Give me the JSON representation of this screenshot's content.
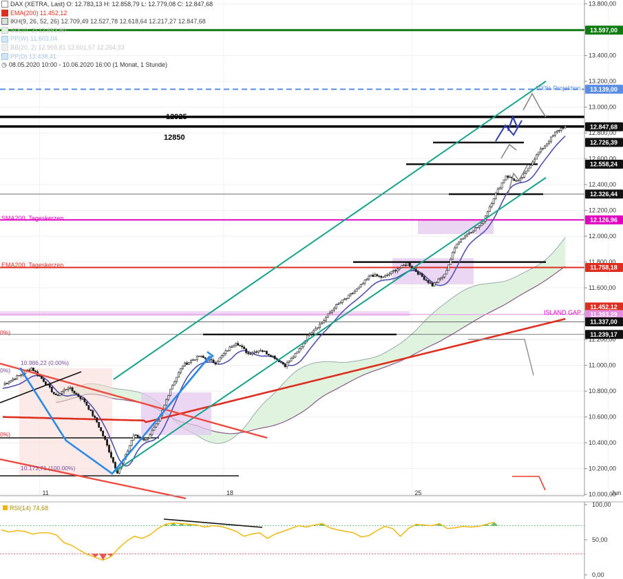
{
  "legend": {
    "title": "DAX (XETRA, Last)  O: 12.783,13  H: 12.858,79  L: 12.779,08  C: 12.847,68",
    "ema200": "EMA(200)  11.452,12",
    "ikh": "IKH(9, 26, 52, 26)  12.709,49  12.527,78  12.618,64  12.217,27  12.847,68",
    "sd": "SD(10, 2)  12.693,80",
    "ppw": "PP(W)  11.603,04",
    "bb": "BB(20, 2)  12.959,81  12.501,57  12.264,33",
    "ppd": "PP(D)  12.438,41",
    "range": "08.05.2020 10:00 - 10.06.2020 16:00   (1 Monat, 1 Stunde)"
  },
  "colors": {
    "candle": "#1a1a1a",
    "ema200": "#dd2e1f",
    "sma200": "#e000c0",
    "channel": "#15a38a",
    "tenkan": "#5050b0",
    "cloud": "#dff3df",
    "lead_b": "#8a5a8a",
    "rsi": "#f0b400",
    "rsi_green": "#4caf50",
    "rsi_red": "#e53935",
    "projection": "#5a8ee6",
    "arrow_blue": "#2a88e6",
    "resistance_green": "#0f7a0f"
  },
  "annotations": {
    "level_12925": "12925",
    "level_12850": "12850",
    "sma200": "SMA200, Tageskerzen",
    "ema200": "EMA200, Tageskerzen",
    "projection": "100% Projektion",
    "island_gap": "ISLAND GAP",
    "fib_high": "10.986,22 (0.00%)",
    "fib_low": "10.173,71 (100.00%)",
    "pct_top": "0%)",
    "pct_mid": "0%)",
    "pct_left": "0%)"
  },
  "chart_data": [
    {
      "type": "candlestick",
      "title": "DAX (XETRA, Last)",
      "x_ticks": [
        "11",
        "18",
        "25",
        "Jun"
      ],
      "y_ticks": [
        "10.000,00",
        "10.200,00",
        "10.400,00",
        "10.600,00",
        "10.800,00",
        "11.000,00",
        "11.200,00",
        "11.400,00",
        "11.600,00",
        "11.800,00",
        "12.000,00",
        "12.200,00",
        "12.400,00",
        "12.600,00",
        "12.800,00",
        "13.000,00",
        "13.200,00",
        "13.400,00",
        "13.600,00",
        "13.800,00"
      ],
      "ylim": [
        9990,
        13830
      ],
      "ohlc": {
        "open": 12783.13,
        "high": 12858.79,
        "low": 12779.08,
        "close": 12847.68
      },
      "price_path": [
        [
          0,
          10850
        ],
        [
          8,
          10920
        ],
        [
          14,
          10980
        ],
        [
          20,
          10880
        ],
        [
          26,
          10760
        ],
        [
          32,
          10830
        ],
        [
          40,
          10720
        ],
        [
          46,
          10560
        ],
        [
          50,
          10420
        ],
        [
          54,
          10250
        ],
        [
          56,
          10174
        ],
        [
          60,
          10300
        ],
        [
          64,
          10460
        ],
        [
          70,
          10420
        ],
        [
          76,
          10560
        ],
        [
          82,
          10820
        ],
        [
          88,
          11000
        ],
        [
          96,
          11070
        ],
        [
          104,
          11020
        ],
        [
          110,
          11120
        ],
        [
          114,
          11180
        ],
        [
          120,
          11090
        ],
        [
          126,
          11120
        ],
        [
          132,
          11070
        ],
        [
          138,
          11000
        ],
        [
          144,
          11100
        ],
        [
          150,
          11250
        ],
        [
          156,
          11330
        ],
        [
          162,
          11450
        ],
        [
          168,
          11520
        ],
        [
          174,
          11600
        ],
        [
          180,
          11700
        ],
        [
          186,
          11680
        ],
        [
          192,
          11740
        ],
        [
          198,
          11790
        ],
        [
          204,
          11700
        ],
        [
          210,
          11620
        ],
        [
          216,
          11700
        ],
        [
          222,
          11950
        ],
        [
          228,
          12030
        ],
        [
          234,
          12090
        ],
        [
          240,
          12300
        ],
        [
          246,
          12470
        ],
        [
          252,
          12420
        ],
        [
          256,
          12500
        ],
        [
          258,
          12560
        ],
        [
          262,
          12650
        ],
        [
          266,
          12720
        ],
        [
          270,
          12800
        ],
        [
          274,
          12848
        ]
      ],
      "price_labels": [
        {
          "value": 13597.0,
          "text": "13.597,00",
          "color": "#0f7a0f"
        },
        {
          "value": 13139.0,
          "text": "13.139,00",
          "color": "#5a8ee6"
        },
        {
          "value": 12847.68,
          "text": "12.847,68",
          "color": "#111111"
        },
        {
          "value": 12726.39,
          "text": "12.726,39",
          "color": "#111111"
        },
        {
          "value": 12558.24,
          "text": "12.558,24",
          "color": "#111111"
        },
        {
          "value": 12326.44,
          "text": "12.326,44",
          "color": "#111111"
        },
        {
          "value": 12126.96,
          "text": "12.126,96",
          "color": "#e000c0"
        },
        {
          "value": 11758.18,
          "text": "11.758,18",
          "color": "#dd2e1f"
        },
        {
          "value": 11452.12,
          "text": "11.452,12",
          "color": "#dd2e1f"
        },
        {
          "value": 11393.29,
          "text": "11.393,29",
          "color": "#e58fe0"
        },
        {
          "value": 11337.0,
          "text": "11.337,00",
          "color": "#111111"
        },
        {
          "value": 11239.17,
          "text": "11.239,17",
          "color": "#111111"
        }
      ],
      "horizontal_levels": [
        {
          "value": 13597,
          "color": "#0f7a0f",
          "width": 3
        },
        {
          "value": 13139,
          "color": "#5a8ee6",
          "width": 2,
          "dash": true
        },
        {
          "value": 12925,
          "color": "#000000",
          "width": 3.5
        },
        {
          "value": 12850,
          "color": "#000000",
          "width": 3.5
        },
        {
          "value": 12126.96,
          "color": "#e000c0",
          "width": 2
        },
        {
          "value": 11758.18,
          "color": "#dd2e1f",
          "width": 2
        },
        {
          "value": 11393.29,
          "color": "#e58fe0",
          "width": 1
        },
        {
          "value": 11337,
          "color": "#555555",
          "width": 0.8
        },
        {
          "value": 11239.17,
          "color": "#555555",
          "width": 0.8
        },
        {
          "value": 12326.44,
          "color": "#555555",
          "width": 0.8
        }
      ]
    },
    {
      "type": "line",
      "title": "RSI(14)  74,68",
      "y_ticks": [
        "0,00",
        "50,00",
        "100,00"
      ],
      "ylim": [
        0,
        100
      ],
      "levels": [
        70,
        30
      ],
      "values": [
        64,
        61,
        63,
        62,
        58,
        60,
        60,
        57,
        46,
        42,
        35,
        29,
        25,
        21,
        26,
        38,
        48,
        55,
        52,
        57,
        66,
        72,
        74,
        73,
        72,
        71,
        68,
        70,
        69,
        66,
        62,
        55,
        58,
        60,
        52,
        58,
        62,
        66,
        70,
        68,
        71,
        73,
        67,
        64,
        62,
        60,
        54,
        56,
        63,
        69,
        66,
        55,
        66,
        72,
        71,
        70,
        73,
        66,
        67,
        69,
        68,
        69,
        72,
        75
      ]
    }
  ]
}
